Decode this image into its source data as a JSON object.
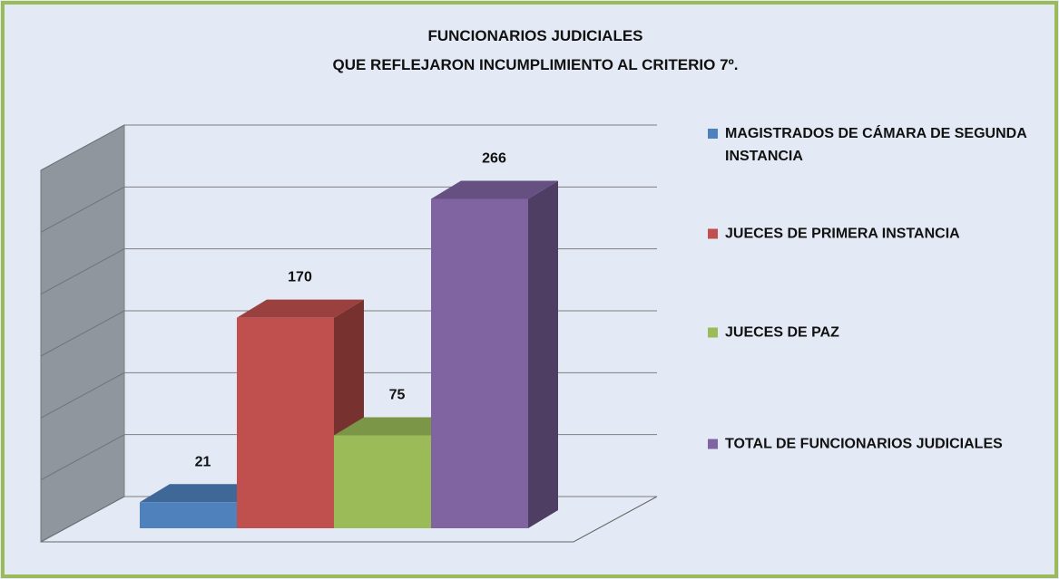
{
  "chart_data": {
    "type": "bar3d",
    "title": [
      "FUNCIONARIOS JUDICIALES",
      "QUE REFLEJARON INCUMPLIMIENTO AL CRITERIO 7º."
    ],
    "series": [
      {
        "name": "MAGISTRADOS DE CÁMARA DE SEGUNDA INSTANCIA",
        "color": "#4f81bd",
        "values": [
          21
        ]
      },
      {
        "name": "JUECES DE PRIMERA INSTANCIA",
        "color": "#c0504d",
        "values": [
          170
        ]
      },
      {
        "name": "JUECES DE PAZ",
        "color": "#9bbb59",
        "values": [
          75
        ]
      },
      {
        "name": "TOTAL DE FUNCIONARIOS JUDICIALES",
        "color": "#8064a2",
        "values": [
          266
        ]
      }
    ],
    "ylim": [
      0,
      300
    ],
    "yticks": [
      0,
      50,
      100,
      150,
      200,
      250,
      300
    ],
    "grid": true,
    "legend": "right"
  }
}
